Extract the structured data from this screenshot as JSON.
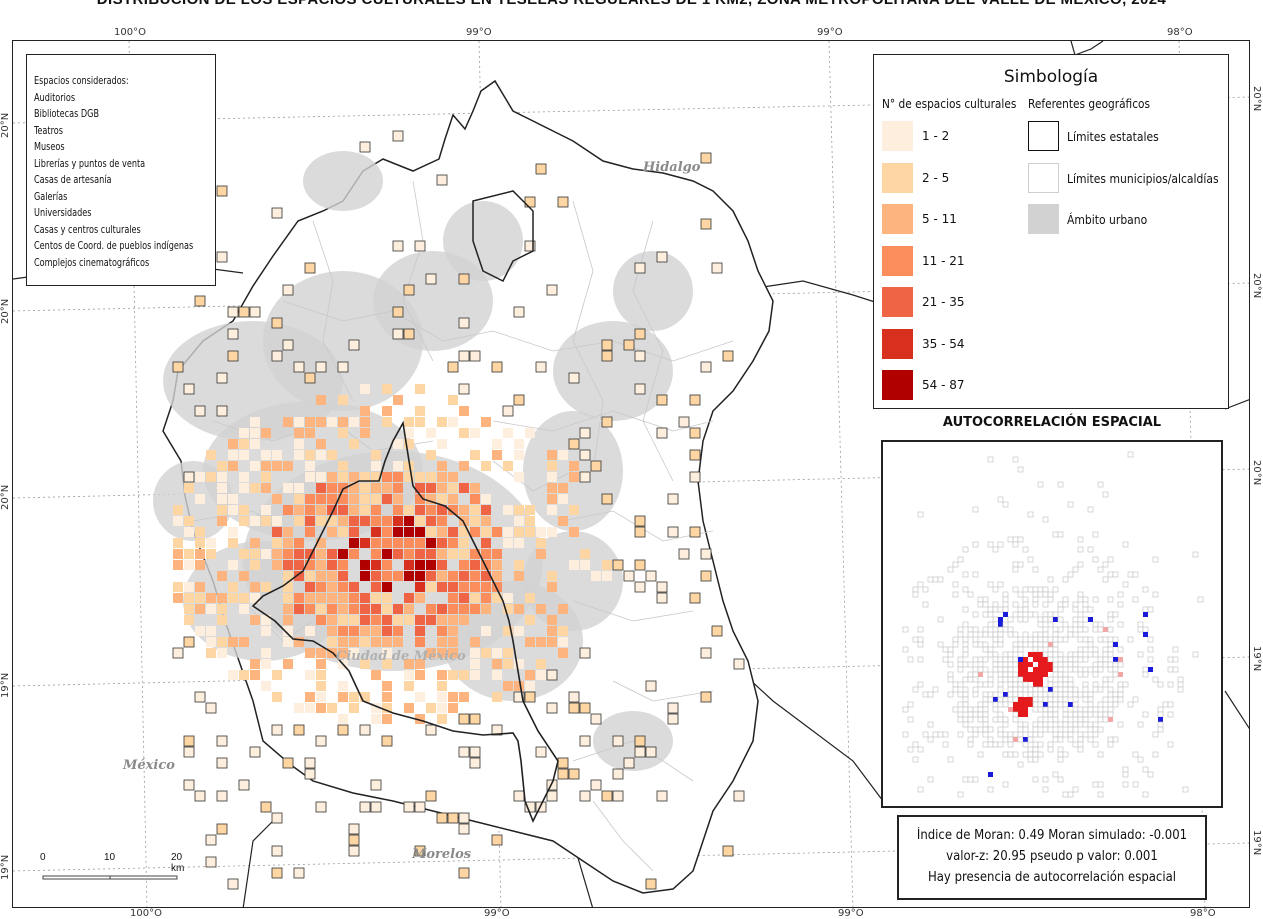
{
  "title": "DISTRIBUCIÓN DE LOS ESPACIOS CULTURALES EN TESELAS REGULARES DE 1 KM2, ZONA METROPOLITANA DEL VALLE DE MÉXICO, 2024",
  "coordinates": {
    "top": [
      "100°O",
      "99°O",
      "99°O",
      "98°O"
    ],
    "bottom": [
      "100°O",
      "99°O",
      "99°O",
      "98°O"
    ],
    "left": [
      "20°N",
      "20°N",
      "20°N",
      "19°N",
      "19°N"
    ],
    "right": [
      "20°N",
      "20°N",
      "20°N",
      "19°N",
      "19°N"
    ]
  },
  "place_labels": {
    "hidalgo": "Hidalgo",
    "mexico": "México",
    "morelos": "Morelos",
    "cdmx": "Ciudad de México"
  },
  "spaces_considered": {
    "heading": "Espacios considerados:",
    "items": [
      "Auditorios",
      "Bibliotecas DGB",
      "Teatros",
      "Museos",
      "Librerías y puntos de venta",
      "Casas de artesanía",
      "Galerías",
      "Universidades",
      "Casas y centros culturales",
      "Centos de Coord. de pueblos indígenas",
      "Complejos cinematográficos"
    ]
  },
  "legend": {
    "title": "Simbología",
    "classes_heading": "N° de espacios culturales",
    "classes": [
      {
        "label": "1 - 2",
        "color": "#fdeedd"
      },
      {
        "label": "2 - 5",
        "color": "#fdd6a4"
      },
      {
        "label": "5 - 11",
        "color": "#fdb47e"
      },
      {
        "label": "11 - 21",
        "color": "#fb8d5d"
      },
      {
        "label": "21 - 35",
        "color": "#ef6445"
      },
      {
        "label": "35 - 54",
        "color": "#d7301f"
      },
      {
        "label": "54 - 87",
        "color": "#b00000"
      }
    ],
    "refs_heading": "Referentes geográficos",
    "refs": [
      {
        "label": "Límites estatales",
        "kind": "state"
      },
      {
        "label": "Límites municipios/alcaldías",
        "kind": "municipal"
      },
      {
        "label": "Ámbito urbano",
        "kind": "urban",
        "color": "#d2d2d2"
      }
    ]
  },
  "autocorrelation": {
    "title": "AUTOCORRELACIÓN ESPACIAL",
    "colors": {
      "high_high": "#e41a1c",
      "low_low": "#1a1adb",
      "high_low": "#f4a6a6",
      "low_high": "#9a9af0",
      "not_significant": "#cccccc"
    }
  },
  "moran": {
    "line1": "Índice de Moran: 0.49 Moran simulado: -0.001",
    "line2": "valor-z: 20.95 pseudo p valor: 0.001",
    "line3": "Hay presencia de autocorrelación espacial"
  },
  "scale": {
    "labels": [
      "0",
      "10",
      "20 km"
    ]
  }
}
